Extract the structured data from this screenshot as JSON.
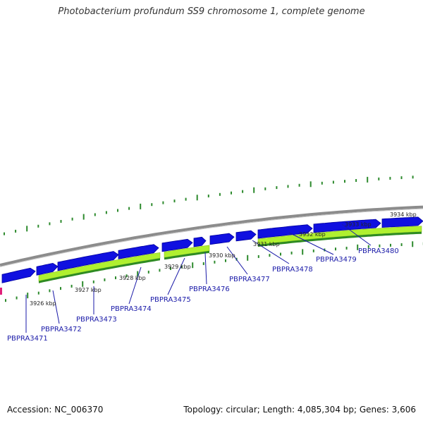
{
  "title": "Photobacterium profundum SS9 chromosome 1, complete genome",
  "footer": {
    "accession": "Accession: NC_006370",
    "summary": "Topology: circular; Length: 4,085,304 bp; Genes: 3,606"
  },
  "colors": {
    "forward_cds": "#1010e0",
    "reverse_cds_light": "#b0f030",
    "reverse_cds_dark": "#2e8b22",
    "backbone": "#8c8c8c",
    "tick": "#2d8a2d",
    "gene_label": "#1a1aa8",
    "leader_line": "#1a1aa8",
    "kbp_label": "#222222",
    "marker": "#e0207a"
  },
  "scale": {
    "unit": "kbp",
    "ticks": [
      "3926 kbp",
      "3927 kbp",
      "3928 kbp",
      "3929 kbp",
      "3930 kbp",
      "3931 kbp",
      "3932 kbp",
      "3933 kbp",
      "3934 kbp"
    ]
  },
  "genes": [
    {
      "label": "PBPRA3471"
    },
    {
      "label": "PBPRA3472"
    },
    {
      "label": "PBPRA3473"
    },
    {
      "label": "PBPRA3474"
    },
    {
      "label": "PBPRA3475"
    },
    {
      "label": "PBPRA3476"
    },
    {
      "label": "PBPRA3477"
    },
    {
      "label": "PBPRA3478"
    },
    {
      "label": "PBPRA3479"
    },
    {
      "label": "PBPRA3480"
    }
  ]
}
